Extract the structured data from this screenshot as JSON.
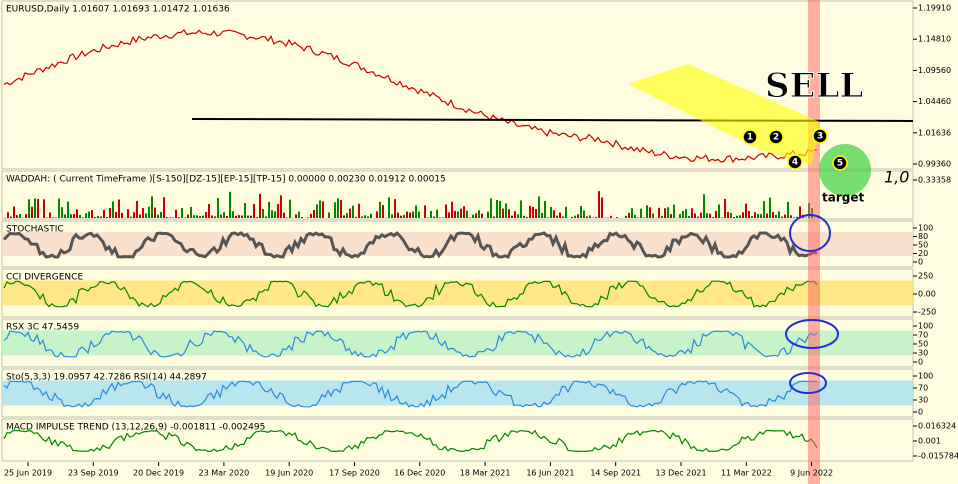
{
  "panels": [
    {
      "title": "EURUSD,Daily  1.01607 1.01693 1.01472 1.01636",
      "axis": [
        "1.19910",
        "1.14810",
        "1.09560",
        "1.04460",
        "1.01636",
        "0.99360"
      ]
    },
    {
      "title": "WADDAH: ( Current TimeFrame )[S-150][DZ-15][EP-15][TP-15] 0.00000 0.00230 0.01912 0.00015",
      "axis": [
        "0.33358"
      ]
    },
    {
      "title": "STOCHASTIC",
      "axis": [
        "100",
        "80",
        "50",
        "20",
        "0"
      ]
    },
    {
      "title": "CCI DIVERGENCE",
      "axis": [
        "250",
        "0.00",
        "-250"
      ]
    },
    {
      "title": "RSX 3C 47.5459",
      "axis": [
        "100",
        "70",
        "50",
        "30",
        "0"
      ]
    },
    {
      "title": "Sto(5,3,3) 19.0957 42.7286  RSI(14) 44.2897",
      "axis": [
        "100",
        "70",
        "30",
        "0"
      ]
    },
    {
      "title": "MACD IMPULSE TREND (13,12,26,9) -0.001811 -0.002495",
      "axis": [
        "0.016324",
        "0.001",
        "-0.015784"
      ]
    }
  ],
  "dates": [
    "25 Jun 2019",
    "23 Sep 2019",
    "20 Dec 2019",
    "23 Mar 2020",
    "19 Jun 2020",
    "17 Sep 2020",
    "16 Dec 2020",
    "18 Mar 2021",
    "16 Jun 2021",
    "14 Sep 2021",
    "13 Dec 2021",
    "11 Mar 2022",
    "9 Jun 2022"
  ],
  "annotations": {
    "sell": "SELL",
    "target": "target",
    "ratio": "1,0",
    "markers": [
      "1",
      "2",
      "3",
      "4",
      "5"
    ]
  }
}
